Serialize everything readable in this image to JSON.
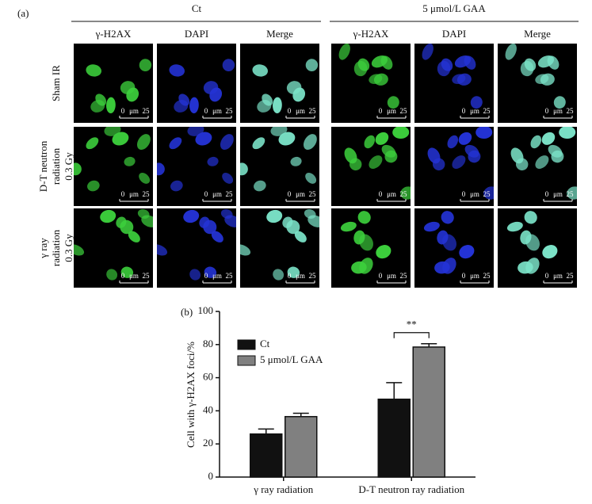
{
  "panel_a": {
    "label": "(a)",
    "groups": [
      "Ct",
      "5 μmol/L GAA"
    ],
    "channels": [
      "γ-H2AX",
      "DAPI",
      "Merge"
    ],
    "rows": [
      [
        "Sham IR"
      ],
      [
        "D-T neutron",
        "radiation",
        "0.3 Gy"
      ],
      [
        "γ ray",
        "radiation",
        "0.3 Gy"
      ]
    ],
    "scale_bar": {
      "start": "0",
      "unit": "μm",
      "end": "25"
    }
  },
  "chart_data": {
    "type": "bar",
    "panel_label": "(b)",
    "ylabel": "Cell with γ-H2AX foci/%",
    "categories": [
      "γ ray radiation",
      "D-T neutron ray radiation"
    ],
    "series": [
      {
        "name": "Ct",
        "color": "#111111",
        "values": [
          26,
          47
        ],
        "errors": [
          3,
          10
        ]
      },
      {
        "name": "5 μmol/L GAA",
        "color": "#808080",
        "values": [
          36.5,
          78.5
        ],
        "errors": [
          2,
          2
        ]
      }
    ],
    "ylim": [
      0,
      100
    ],
    "yticks": [
      0,
      20,
      40,
      60,
      80,
      100
    ],
    "annotation": "**"
  }
}
